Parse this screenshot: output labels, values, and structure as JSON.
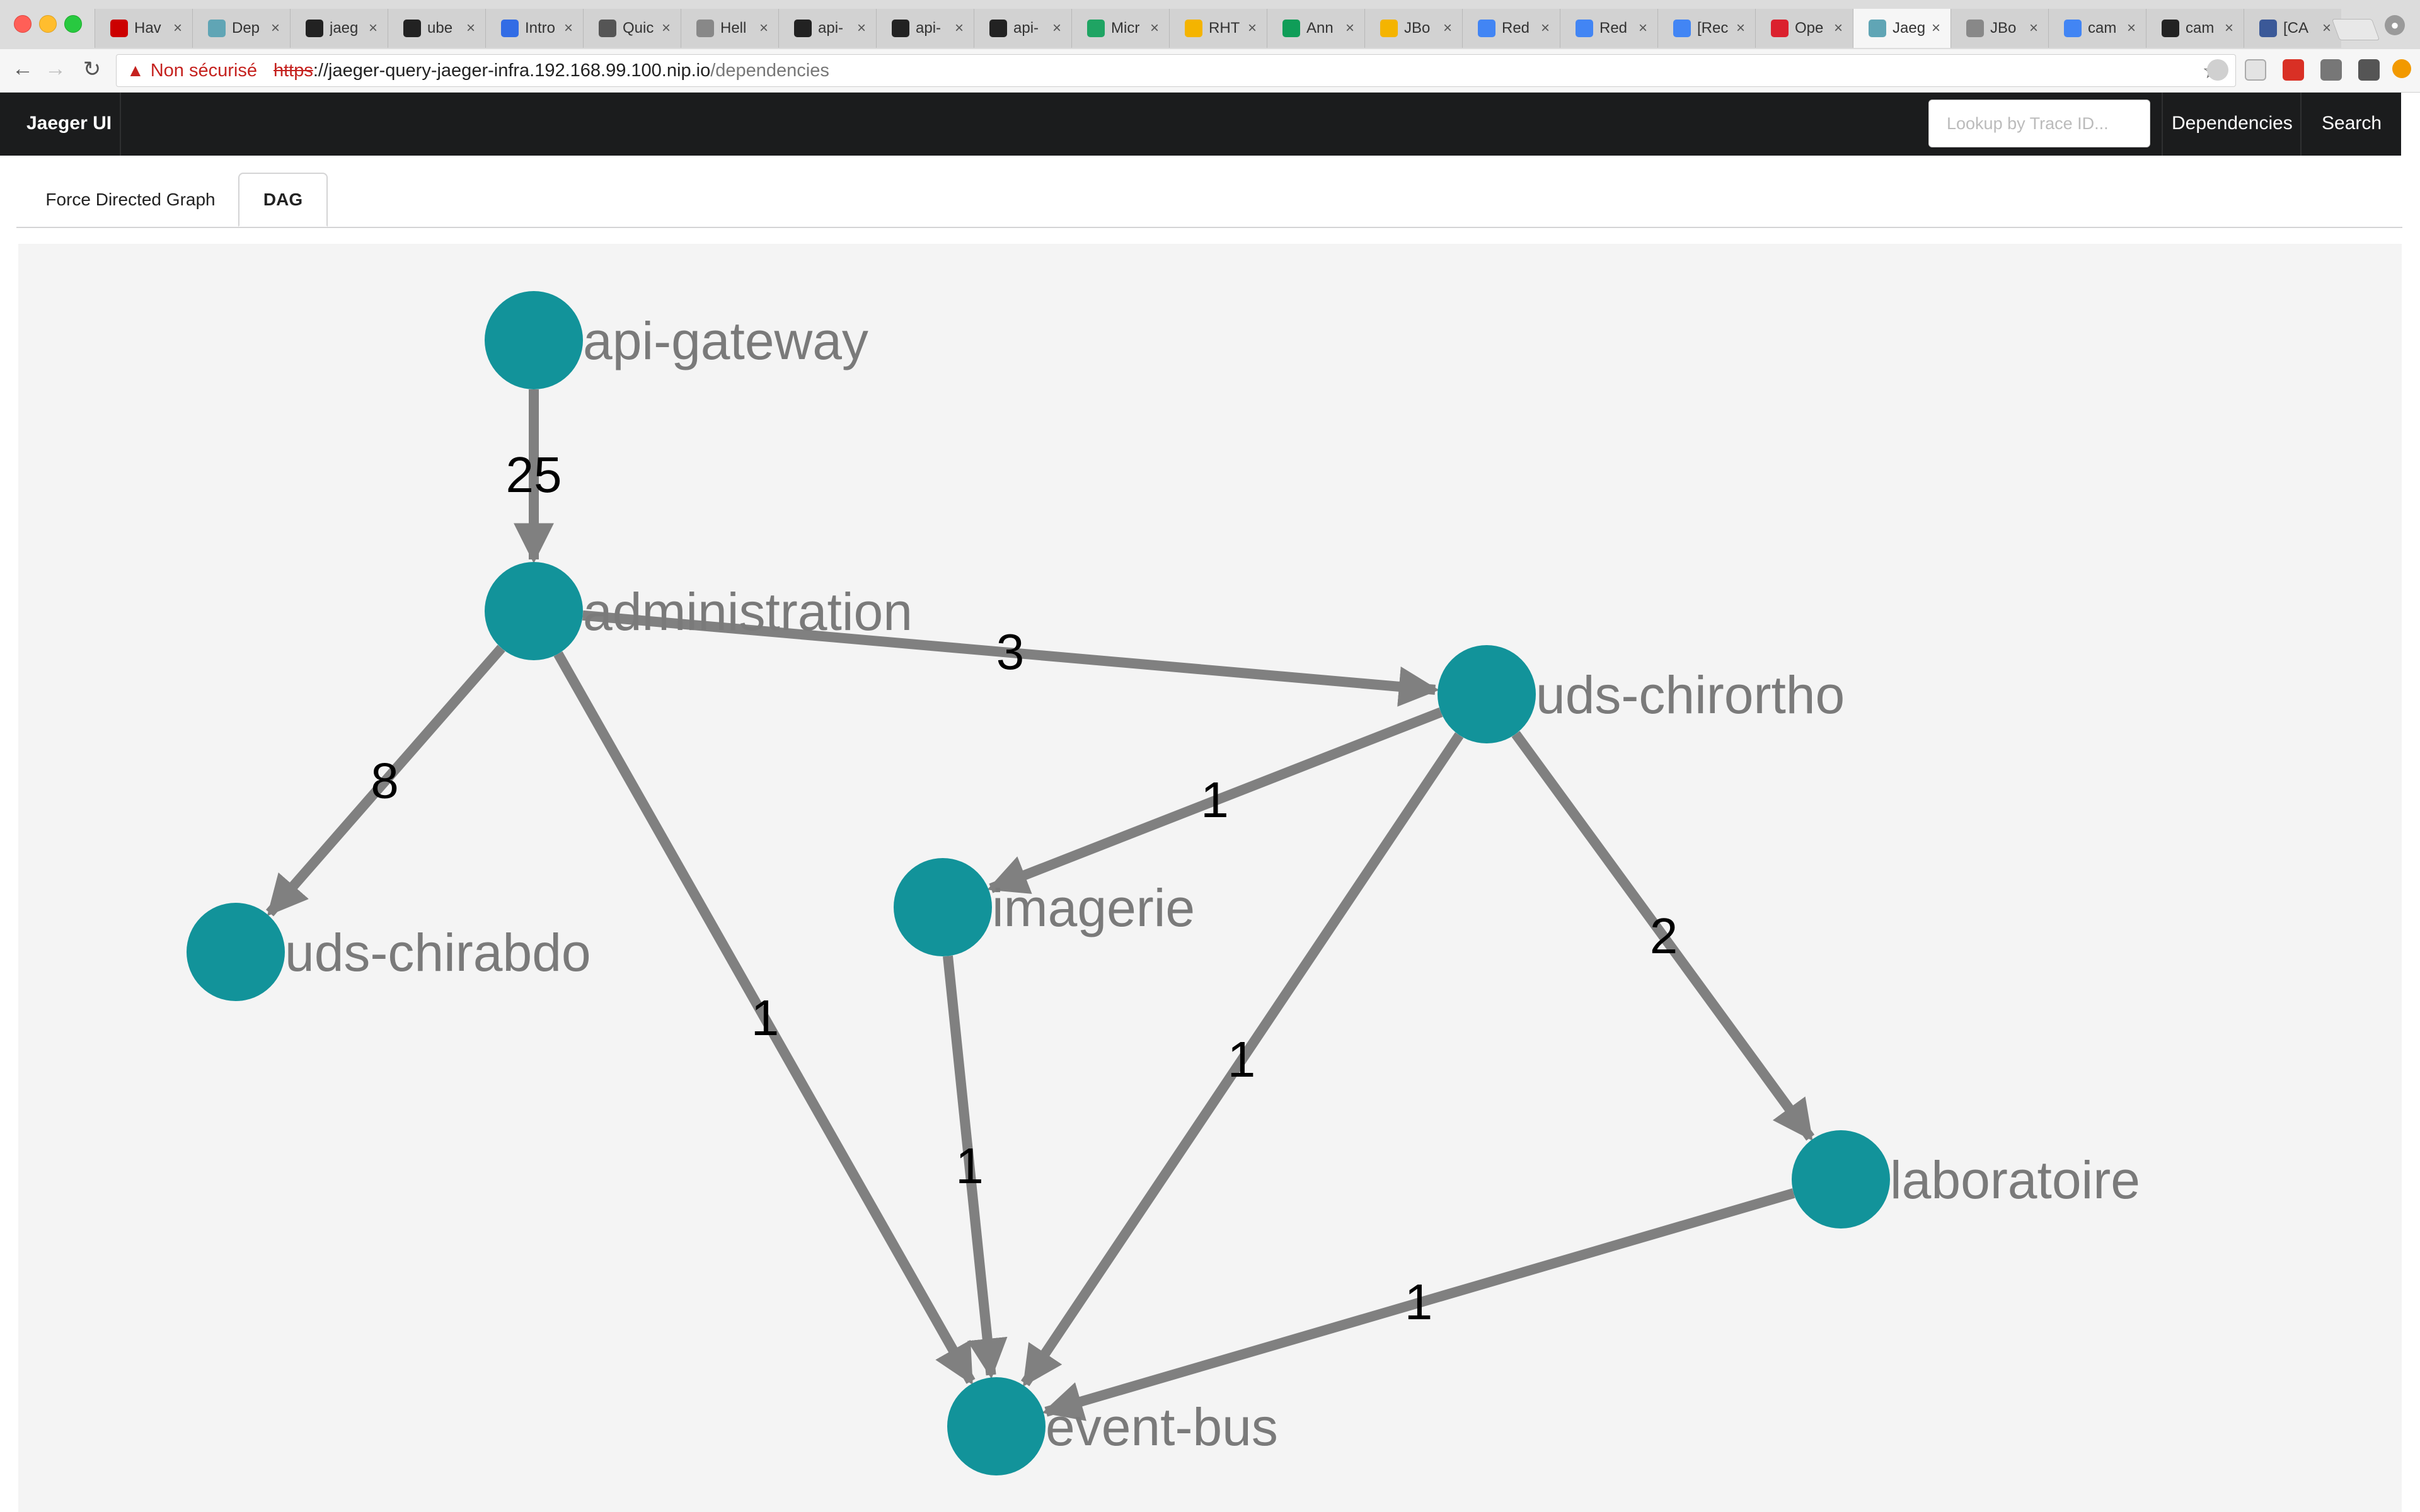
{
  "browser": {
    "tabs": [
      {
        "label": "Hav",
        "icon": "red-hat-icon",
        "color": "#cc0000"
      },
      {
        "label": "Dep",
        "icon": "jaeger-icon",
        "color": "#60a5b5"
      },
      {
        "label": "jaeg",
        "icon": "github-icon",
        "color": "#222222"
      },
      {
        "label": "ube",
        "icon": "github-icon",
        "color": "#222222"
      },
      {
        "label": "Intro",
        "icon": "kubernetes-icon",
        "color": "#326ce5"
      },
      {
        "label": "Quic",
        "icon": "person-icon",
        "color": "#555555"
      },
      {
        "label": "Hell",
        "icon": "page-icon",
        "color": "#888888"
      },
      {
        "label": "api-",
        "icon": "github-icon",
        "color": "#222222"
      },
      {
        "label": "api-",
        "icon": "github-icon",
        "color": "#222222"
      },
      {
        "label": "api-",
        "icon": "github-icon",
        "color": "#222222"
      },
      {
        "label": "Micr",
        "icon": "drive-icon",
        "color": "#1fa463"
      },
      {
        "label": "RHT",
        "icon": "slides-icon",
        "color": "#f4b400"
      },
      {
        "label": "Ann",
        "icon": "sheets-icon",
        "color": "#0f9d58"
      },
      {
        "label": "JBo",
        "icon": "slides-icon",
        "color": "#f4b400"
      },
      {
        "label": "Red",
        "icon": "docs-icon",
        "color": "#4285f4"
      },
      {
        "label": "Red",
        "icon": "docs-icon",
        "color": "#4285f4"
      },
      {
        "label": "[Rec",
        "icon": "docs-icon",
        "color": "#4285f4"
      },
      {
        "label": "Ope",
        "icon": "openshift-icon",
        "color": "#db212e"
      },
      {
        "label": "Jaeg",
        "icon": "jaeger-icon",
        "color": "#60a5b5",
        "active": true
      },
      {
        "label": "JBo",
        "icon": "page-icon",
        "color": "#888888"
      },
      {
        "label": "cam",
        "icon": "google-icon",
        "color": "#4285f4"
      },
      {
        "label": "cam",
        "icon": "github-icon",
        "color": "#222222"
      },
      {
        "label": "[CA",
        "icon": "camel-icon",
        "color": "#3b5998"
      }
    ],
    "tab_close": "×",
    "security_label": "Non sécurisé",
    "url_scheme": "https",
    "url_host": "://jaeger-query-jaeger-infra.192.168.99.100.nip.io",
    "url_path": "/dependencies",
    "back": "←",
    "forward": "→",
    "reload": "↻",
    "bookmark": "☆"
  },
  "nav": {
    "brand": "Jaeger UI",
    "lookup_placeholder": "Lookup by Trace ID...",
    "dependencies": "Dependencies",
    "search": "Search"
  },
  "view_tabs": {
    "force": "Force Directed Graph",
    "dag": "DAG"
  },
  "graph": {
    "node_color": "#12939a",
    "edge_color": "#808080",
    "nodes": [
      {
        "id": "api-gateway",
        "label": "api-gateway"
      },
      {
        "id": "administration",
        "label": "administration"
      },
      {
        "id": "uds-chirortho",
        "label": "uds-chirortho"
      },
      {
        "id": "uds-chirabdo",
        "label": "uds-chirabdo"
      },
      {
        "id": "imagerie",
        "label": "imagerie"
      },
      {
        "id": "laboratoire",
        "label": "laboratoire"
      },
      {
        "id": "event-bus",
        "label": "event-bus"
      }
    ],
    "edges": [
      {
        "from": "api-gateway",
        "to": "administration",
        "calls": "25"
      },
      {
        "from": "administration",
        "to": "uds-chirortho",
        "calls": "3"
      },
      {
        "from": "administration",
        "to": "uds-chirabdo",
        "calls": "8"
      },
      {
        "from": "administration",
        "to": "event-bus",
        "calls": "1"
      },
      {
        "from": "uds-chirortho",
        "to": "imagerie",
        "calls": "1"
      },
      {
        "from": "uds-chirortho",
        "to": "event-bus",
        "calls": "1"
      },
      {
        "from": "uds-chirortho",
        "to": "laboratoire",
        "calls": "2"
      },
      {
        "from": "imagerie",
        "to": "event-bus",
        "calls": "1"
      },
      {
        "from": "laboratoire",
        "to": "event-bus",
        "calls": "1"
      }
    ]
  }
}
